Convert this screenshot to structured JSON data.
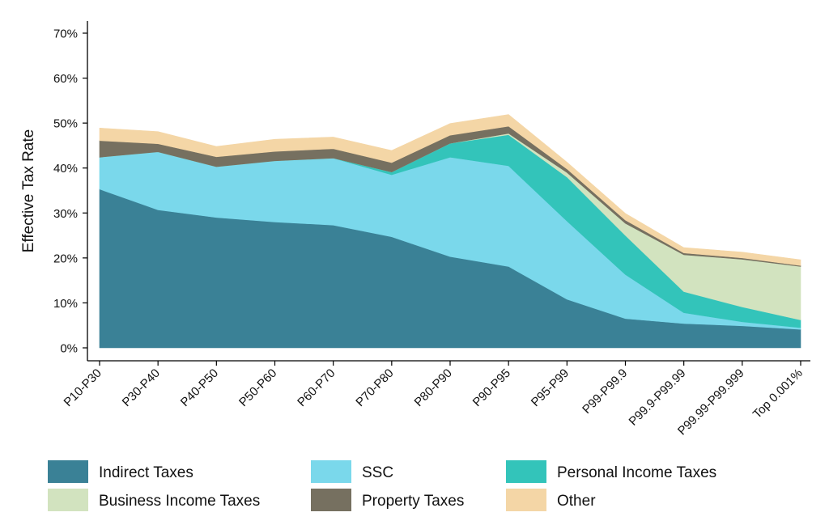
{
  "chart_data": {
    "type": "area",
    "stacked": true,
    "title": "",
    "xlabel": "",
    "ylabel": "Effective Tax Rate",
    "ylim": [
      0,
      70
    ],
    "yticks": [
      0,
      10,
      20,
      30,
      40,
      50,
      60,
      70
    ],
    "ytick_suffix": "%",
    "grid": false,
    "legend_position": "bottom",
    "categories": [
      "P10-P30",
      "P30-P40",
      "P40-P50",
      "P50-P60",
      "P60-P70",
      "P70-P80",
      "P80-P90",
      "P90-P95",
      "P95-P99",
      "P99-P99.9",
      "P99.9-P99.99",
      "P99.99-P99.999",
      "Top 0.001%"
    ],
    "series": [
      {
        "name": "Indirect Taxes",
        "color": "#3a8196",
        "values": [
          35.3,
          30.7,
          29.0,
          28.0,
          27.3,
          24.7,
          20.3,
          18.1,
          10.8,
          6.5,
          5.4,
          4.9,
          4.1
        ]
      },
      {
        "name": "SSC",
        "color": "#7ad8eb",
        "values": [
          7.1,
          12.9,
          11.3,
          13.6,
          14.9,
          13.8,
          22.1,
          22.4,
          17.4,
          9.8,
          2.4,
          0.9,
          0.4
        ]
      },
      {
        "name": "Personal Income Taxes",
        "color": "#33c4ba",
        "values": [
          0.0,
          0.0,
          0.0,
          0.0,
          0.0,
          0.6,
          3.1,
          6.9,
          9.8,
          8.7,
          4.7,
          3.3,
          1.7
        ]
      },
      {
        "name": "Business Income Taxes",
        "color": "#d2e3bf",
        "values": [
          0.0,
          0.0,
          0.0,
          0.0,
          0.0,
          0.0,
          0.0,
          0.3,
          1.0,
          2.7,
          8.2,
          10.6,
          11.9
        ]
      },
      {
        "name": "Property Taxes",
        "color": "#767060",
        "values": [
          3.7,
          1.8,
          2.2,
          2.1,
          2.1,
          2.1,
          1.8,
          1.6,
          0.8,
          0.7,
          0.4,
          0.3,
          0.2
        ]
      },
      {
        "name": "Other",
        "color": "#f4d6a6",
        "values": [
          2.8,
          2.7,
          2.3,
          2.7,
          2.6,
          2.7,
          2.6,
          2.6,
          1.5,
          1.5,
          1.2,
          1.3,
          1.3
        ]
      }
    ]
  }
}
